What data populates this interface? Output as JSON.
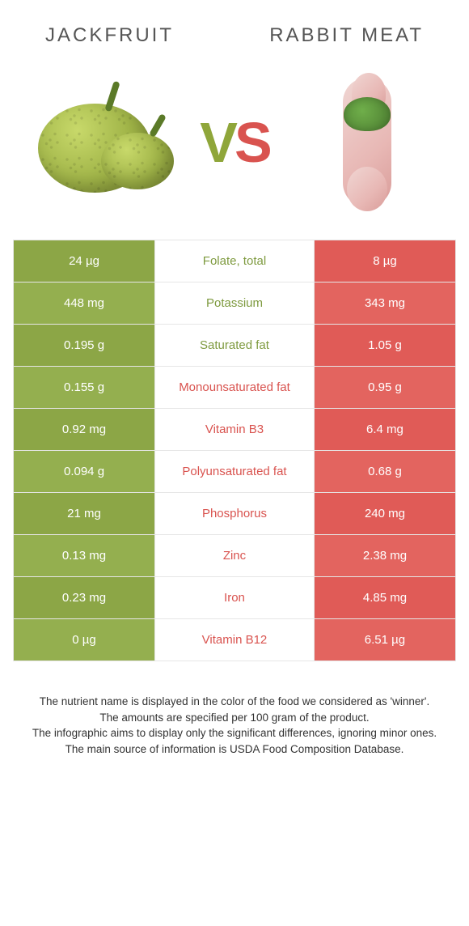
{
  "titles": {
    "left": "Jackfruit",
    "right": "Rabbit meat"
  },
  "vs": {
    "v": "V",
    "s": "S"
  },
  "colors": {
    "green_odd": "#8ca646",
    "green_even": "#94af4f",
    "red_odd": "#e05b57",
    "red_even": "#e3645f",
    "mid_green": "#7e9a3f",
    "mid_red": "#d9534f"
  },
  "rows": [
    {
      "label": "Folate, total",
      "left": "24 µg",
      "right": "8 µg",
      "winner": "green"
    },
    {
      "label": "Potassium",
      "left": "448 mg",
      "right": "343 mg",
      "winner": "green"
    },
    {
      "label": "Saturated fat",
      "left": "0.195 g",
      "right": "1.05 g",
      "winner": "green"
    },
    {
      "label": "Monounsaturated fat",
      "left": "0.155 g",
      "right": "0.95 g",
      "winner": "red"
    },
    {
      "label": "Vitamin B3",
      "left": "0.92 mg",
      "right": "6.4 mg",
      "winner": "red"
    },
    {
      "label": "Polyunsaturated fat",
      "left": "0.094 g",
      "right": "0.68 g",
      "winner": "red"
    },
    {
      "label": "Phosphorus",
      "left": "21 mg",
      "right": "240 mg",
      "winner": "red"
    },
    {
      "label": "Zinc",
      "left": "0.13 mg",
      "right": "2.38 mg",
      "winner": "red"
    },
    {
      "label": "Iron",
      "left": "0.23 mg",
      "right": "4.85 mg",
      "winner": "red"
    },
    {
      "label": "Vitamin B12",
      "left": "0 µg",
      "right": "6.51 µg",
      "winner": "red"
    }
  ],
  "footer": {
    "l1": "The nutrient name is displayed in the color of the food we considered as 'winner'.",
    "l2": "The amounts are specified per 100 gram of the product.",
    "l3": "The infographic aims to display only the significant differences, ignoring minor ones.",
    "l4": "The main source of information is USDA Food Composition Database."
  }
}
